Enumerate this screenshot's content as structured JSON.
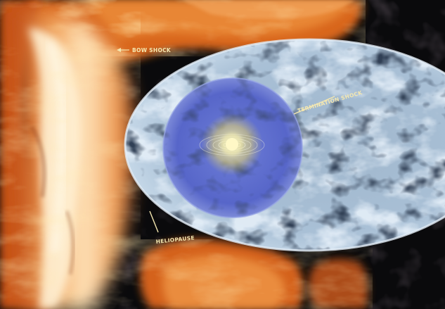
{
  "labels": {
    "bow_shock": "BOW SHOCK",
    "termination_shock": "TERMINATION SHOCK",
    "heliopause": "HELIOPAUSE"
  },
  "colors": {
    "background": "#0a0a0c",
    "plasma_orange": "#e2761f",
    "plasma_hot": "#ffe9b8",
    "heliosheath": "#b9cde0",
    "termination_region": "#5563c8",
    "sun": "#fff6a8",
    "label_text": "#f4e7b0"
  }
}
